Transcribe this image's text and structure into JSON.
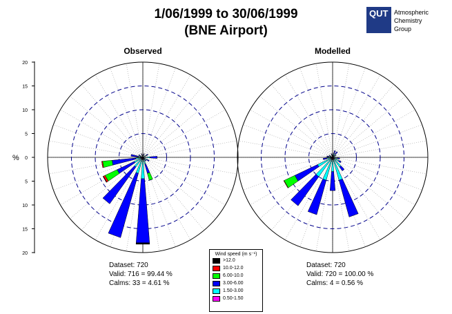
{
  "header": {
    "title": "1/06/1999 to 30/06/1999",
    "subtitle": "(BNE Airport)",
    "logo_mark": "QUT",
    "logo_lines": [
      "Atmospheric",
      "Chemistry",
      "Group"
    ]
  },
  "axis": {
    "ylabel": "%",
    "ticks": [
      "20",
      "15",
      "10",
      "5",
      "0",
      "5",
      "10",
      "15",
      "20"
    ]
  },
  "legend": {
    "title": "Wind speed (m s⁻¹)",
    "items": [
      {
        "label": ">12.0",
        "color": "#000000"
      },
      {
        "label": "10.0-12.0",
        "color": "#ff0000"
      },
      {
        "label": "6.00-10.0",
        "color": "#00ff00"
      },
      {
        "label": "3.00-6.00",
        "color": "#0000ff"
      },
      {
        "label": "1.50-3.00",
        "color": "#00ffff"
      },
      {
        "label": "0.50-1.50",
        "color": "#ff00ff"
      }
    ]
  },
  "panels": [
    {
      "title": "Observed",
      "stats": [
        "Dataset: 720",
        "Valid: 716 = 99.44 %",
        "Calms: 33 = 4.61 %"
      ]
    },
    {
      "title": "Modelled",
      "stats": [
        "Dataset: 720",
        "Valid: 720 = 100.00 %",
        "Calms: 4 = 0.56 %"
      ]
    }
  ],
  "chart_data": [
    {
      "type": "windrose",
      "title": "Observed",
      "rmax": 20,
      "rings": [
        5,
        10,
        15,
        20
      ],
      "bins": [
        "0.50-1.50",
        "1.50-3.00",
        "3.00-6.00",
        "6.00-10.0",
        "10.0-12.0",
        ">12.0"
      ],
      "sectors": [
        {
          "dir": 180,
          "cum": [
            0.5,
            4.5,
            18.0,
            18.0,
            18.0,
            18.3
          ]
        },
        {
          "dir": 200,
          "cum": [
            0.5,
            3.5,
            17.5,
            17.5,
            17.5,
            17.5
          ]
        },
        {
          "dir": 220,
          "cum": [
            0.5,
            2.5,
            12.0,
            12.0,
            12.0,
            12.0
          ]
        },
        {
          "dir": 240,
          "cum": [
            0.5,
            2.0,
            6.0,
            8.8,
            9.2,
            9.3
          ]
        },
        {
          "dir": 260,
          "cum": [
            0.5,
            1.5,
            6.5,
            8.5,
            8.7,
            8.7
          ]
        },
        {
          "dir": 160,
          "cum": [
            0.3,
            1.5,
            3.5,
            5.0,
            5.0,
            5.0
          ]
        },
        {
          "dir": 90,
          "cum": [
            0.3,
            1.5,
            3.0,
            3.0,
            3.0,
            3.0
          ]
        },
        {
          "dir": 120,
          "cum": [
            0.3,
            1.0,
            1.5,
            1.5,
            1.5,
            1.5
          ]
        },
        {
          "dir": 60,
          "cum": [
            0.3,
            0.8,
            1.2,
            1.2,
            1.2,
            1.2
          ]
        },
        {
          "dir": 20,
          "cum": [
            0.2,
            0.5,
            0.8,
            0.8,
            0.8,
            0.8
          ]
        },
        {
          "dir": 340,
          "cum": [
            0.2,
            0.5,
            0.8,
            0.8,
            0.8,
            0.8
          ]
        },
        {
          "dir": 300,
          "cum": [
            0.2,
            0.6,
            1.0,
            1.0,
            1.0,
            1.0
          ]
        },
        {
          "dir": 280,
          "cum": [
            0.3,
            1.0,
            2.5,
            2.5,
            2.5,
            2.5
          ]
        },
        {
          "dir": 140,
          "cum": [
            0.2,
            0.6,
            1.0,
            1.0,
            1.0,
            1.0
          ]
        }
      ]
    },
    {
      "type": "windrose",
      "title": "Modelled",
      "rmax": 20,
      "rings": [
        5,
        10,
        15,
        20
      ],
      "bins": [
        "0.50-1.50",
        "1.50-3.00",
        "3.00-6.00",
        "6.00-10.0",
        "10.0-12.0",
        ">12.0"
      ],
      "sectors": [
        {
          "dir": 200,
          "cum": [
            0.5,
            5.0,
            12.5,
            12.5,
            12.5,
            12.5
          ]
        },
        {
          "dir": 220,
          "cum": [
            0.5,
            5.0,
            12.5,
            12.5,
            12.5,
            12.5
          ]
        },
        {
          "dir": 160,
          "cum": [
            0.5,
            5.0,
            13.0,
            13.0,
            13.0,
            13.0
          ]
        },
        {
          "dir": 240,
          "cum": [
            0.5,
            3.5,
            8.8,
            11.3,
            11.4,
            11.4
          ]
        },
        {
          "dir": 180,
          "cum": [
            0.5,
            3.0,
            7.0,
            7.0,
            7.0,
            7.0
          ]
        },
        {
          "dir": 140,
          "cum": [
            0.5,
            2.5,
            3.5,
            3.5,
            3.5,
            3.5
          ]
        },
        {
          "dir": 120,
          "cum": [
            0.4,
            1.5,
            2.0,
            2.0,
            2.0,
            2.0
          ]
        },
        {
          "dir": 260,
          "cum": [
            0.4,
            1.2,
            2.0,
            2.0,
            2.0,
            2.0
          ]
        },
        {
          "dir": 100,
          "cum": [
            0.3,
            1.0,
            1.5,
            1.5,
            1.5,
            1.5
          ]
        },
        {
          "dir": 280,
          "cum": [
            0.3,
            0.8,
            1.2,
            1.2,
            1.2,
            1.2
          ]
        },
        {
          "dir": 40,
          "cum": [
            0.3,
            0.8,
            1.5,
            1.5,
            1.5,
            1.5
          ]
        },
        {
          "dir": 20,
          "cum": [
            0.3,
            0.8,
            1.5,
            1.5,
            1.5,
            1.5
          ]
        },
        {
          "dir": 60,
          "cum": [
            0.3,
            0.6,
            0.8,
            0.8,
            0.8,
            0.8
          ]
        },
        {
          "dir": 340,
          "cum": [
            0.3,
            0.6,
            0.8,
            0.8,
            0.8,
            0.8
          ]
        },
        {
          "dir": 300,
          "cum": [
            0.2,
            0.6,
            0.8,
            0.8,
            0.8,
            0.8
          ]
        },
        {
          "dir": 0,
          "cum": [
            0.3,
            0.6,
            0.8,
            0.8,
            0.8,
            0.8
          ]
        }
      ]
    }
  ]
}
